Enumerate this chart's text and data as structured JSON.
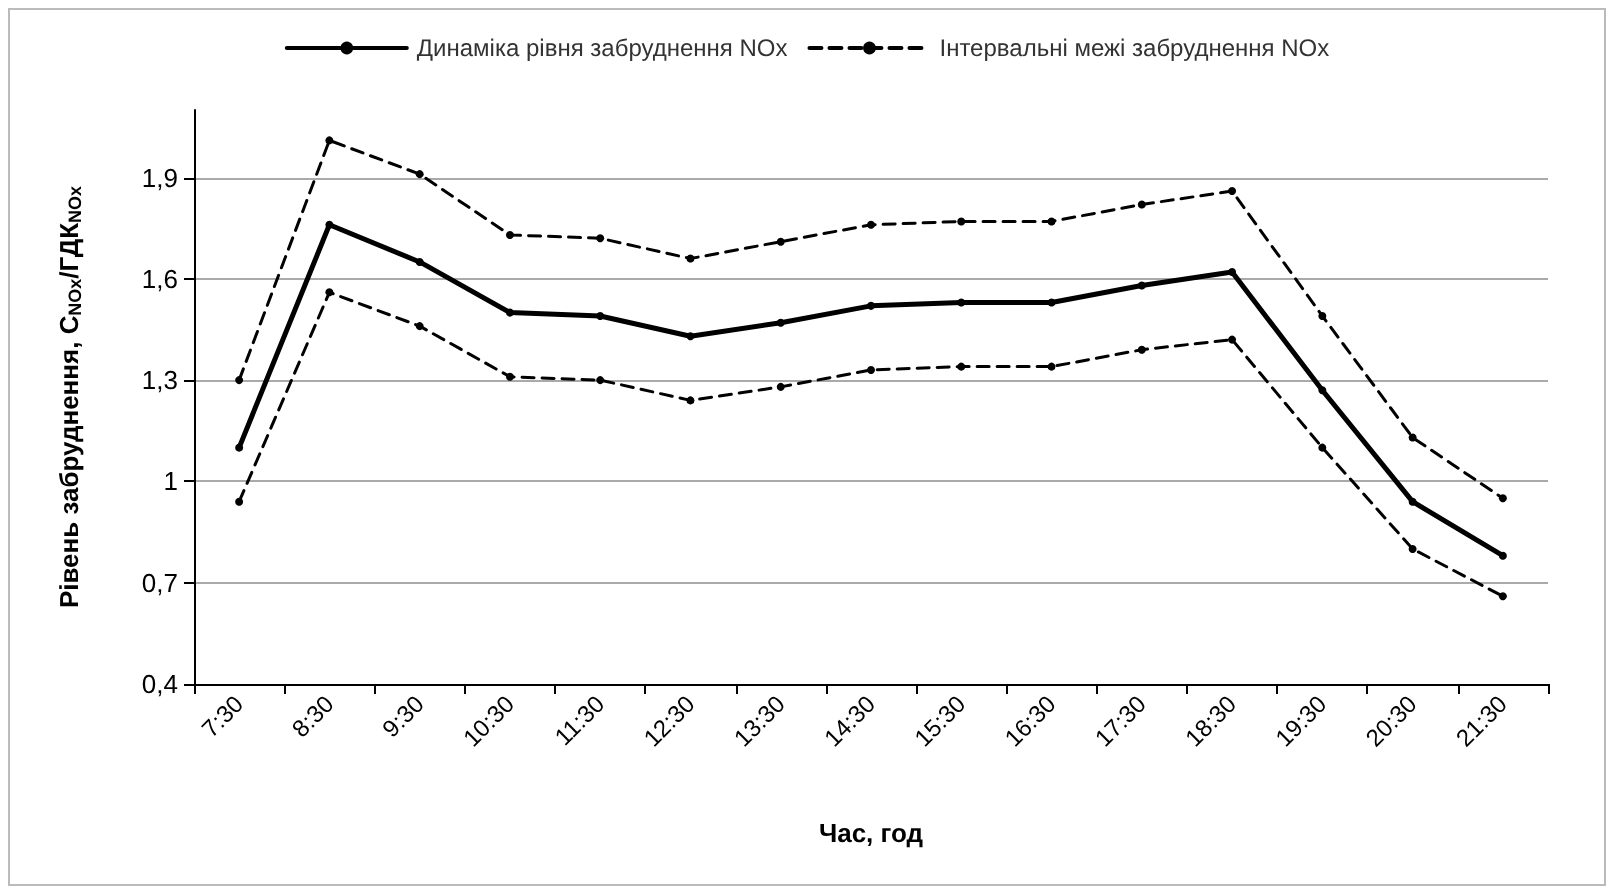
{
  "chart_data": {
    "type": "line",
    "xlabel": "Час, год",
    "ylabel": "Рівень забруднення, C$_{NOx}$/ГДК$_{NOx}$",
    "categories": [
      "7:30",
      "8:30",
      "9:30",
      "10:30",
      "11:30",
      "12:30",
      "13:30",
      "14:30",
      "15:30",
      "16:30",
      "17:30",
      "18:30",
      "19:30",
      "20:30",
      "21:30"
    ],
    "series": [
      {
        "name": "Динаміка рівня забруднення NOx",
        "color": "#000000",
        "line_style": "solid",
        "values": [
          1.1,
          1.76,
          1.65,
          1.5,
          1.49,
          1.43,
          1.47,
          1.52,
          1.53,
          1.53,
          1.58,
          1.62,
          1.27,
          0.94,
          0.78
        ]
      },
      {
        "name": "Інтервальні межі забруднення NOx",
        "color": "#000000",
        "line_style": "dashed",
        "values": [
          1.3,
          2.01,
          1.91,
          1.73,
          1.72,
          1.66,
          1.71,
          1.76,
          1.77,
          1.77,
          1.82,
          1.86,
          1.49,
          1.13,
          0.95
        ]
      },
      {
        "color": "#000000",
        "line_style": "dashed",
        "values": [
          0.94,
          1.56,
          1.46,
          1.31,
          1.3,
          1.24,
          1.28,
          1.33,
          1.34,
          1.34,
          1.39,
          1.42,
          1.1,
          0.8,
          0.66
        ]
      }
    ],
    "ylim": [
      0.4,
      2.1
    ],
    "yticks": [
      {
        "value": 0.4,
        "label": "0,4"
      },
      {
        "value": 0.7,
        "label": "0,7"
      },
      1,
      {
        "value": 1.3,
        "label": "1,3"
      },
      {
        "value": 1.6,
        "label": "1,6"
      },
      {
        "value": 1.9,
        "label": "1,9"
      }
    ],
    "grid": "y",
    "legend": "top",
    "marker": "circle"
  }
}
